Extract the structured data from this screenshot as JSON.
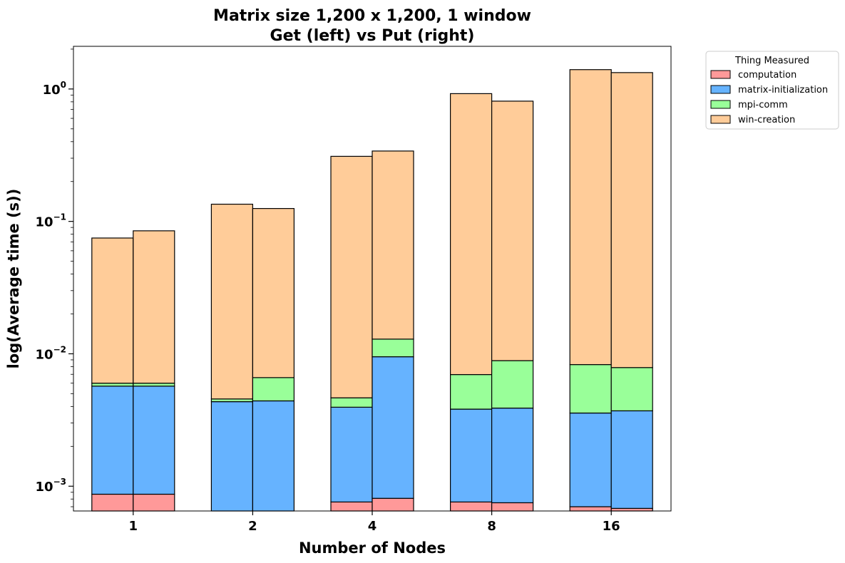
{
  "chart_data": {
    "type": "bar",
    "stacked": true,
    "title": [
      "Matrix size 1,200 x 1,200, 1 window",
      "Get (left) vs Put (right)"
    ],
    "xlabel": "Number of Nodes",
    "ylabel": "log(Average time (s))",
    "yscale": "log",
    "ylim": [
      0.00065,
      2.1
    ],
    "y_major_ticks": [
      {
        "value": 0.001,
        "base": "10",
        "exp": "−3"
      },
      {
        "value": 0.01,
        "base": "10",
        "exp": "−2"
      },
      {
        "value": 0.1,
        "base": "10",
        "exp": "−1"
      },
      {
        "value": 1,
        "base": "10",
        "exp": "0"
      }
    ],
    "categories": [
      "1",
      "2",
      "4",
      "8",
      "16"
    ],
    "sub_bars": [
      "Get",
      "Put"
    ],
    "legend": {
      "title": "Thing Measured",
      "placement": "outside-top-right"
    },
    "series": [
      {
        "name": "computation",
        "color": "#ff9999",
        "get": [
          0.00087,
          0.0006,
          0.00076,
          0.00076,
          0.0007
        ],
        "put": [
          0.00087,
          0.0006,
          0.00081,
          0.00075,
          0.00068
        ]
      },
      {
        "name": "matrix-initialization",
        "color": "#66b3ff",
        "get": [
          0.00483,
          0.00375,
          0.00319,
          0.00306,
          0.00287
        ],
        "put": [
          0.00483,
          0.00381,
          0.00869,
          0.00314,
          0.00303
        ]
      },
      {
        "name": "mpi-comm",
        "color": "#99ff99",
        "get": [
          0.0003,
          0.00021,
          0.0007,
          0.00315,
          0.00472
        ],
        "put": [
          0.0003,
          0.0022,
          0.00341,
          0.00499,
          0.00416
        ]
      },
      {
        "name": "win-creation",
        "color": "#ffcc99",
        "get": [
          0.0689,
          0.1303,
          0.3053,
          0.9153,
          1.3917
        ],
        "put": [
          0.0789,
          0.1185,
          0.3271,
          0.8006,
          1.322
        ]
      }
    ]
  }
}
